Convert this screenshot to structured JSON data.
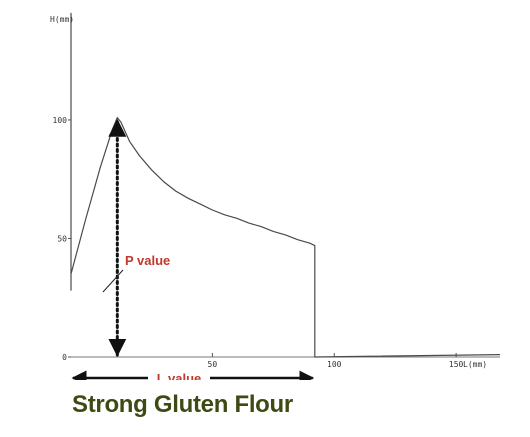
{
  "chart_data": {
    "type": "line",
    "ylabel": "H(mm)",
    "xlabel": "L(mm)",
    "xlim": [
      -8,
      168
    ],
    "ylim": [
      0,
      143
    ],
    "x_ticks": [
      50,
      100,
      150
    ],
    "y_ticks": [
      0,
      50,
      100
    ],
    "grid": false,
    "series": [
      {
        "points": [
          [
            -8,
            28
          ],
          [
            -8,
            35
          ],
          [
            -8,
            145
          ],
          [
            -8,
            35
          ],
          [
            -2,
            58
          ],
          [
            4,
            80
          ],
          [
            9,
            96
          ],
          [
            11,
            101
          ],
          [
            12.5,
            99
          ],
          [
            16,
            91
          ],
          [
            20,
            85
          ],
          [
            25,
            79
          ],
          [
            30,
            74
          ],
          [
            35,
            70
          ],
          [
            40,
            67
          ],
          [
            45,
            64.5
          ],
          [
            50,
            62
          ],
          [
            55,
            60
          ],
          [
            60,
            58.5
          ],
          [
            65,
            56.5
          ],
          [
            70,
            55
          ],
          [
            75,
            53
          ],
          [
            80,
            51.5
          ],
          [
            85,
            49.5
          ],
          [
            90,
            48
          ],
          [
            92,
            47
          ],
          [
            92,
            0
          ],
          [
            168,
            1
          ]
        ]
      }
    ],
    "annotations": {
      "p_value": {
        "label": "P value",
        "x": 11,
        "from_y": 0,
        "to_y": 101
      },
      "l_value": {
        "label": "L value",
        "from_x": -8,
        "to_x": 92
      }
    },
    "colors": {
      "curve": "#4a4a4a",
      "annotation": "#c0392b",
      "arrow": "#111111",
      "caption": "#3d4a14"
    }
  },
  "caption": "Strong Gluten Flour"
}
